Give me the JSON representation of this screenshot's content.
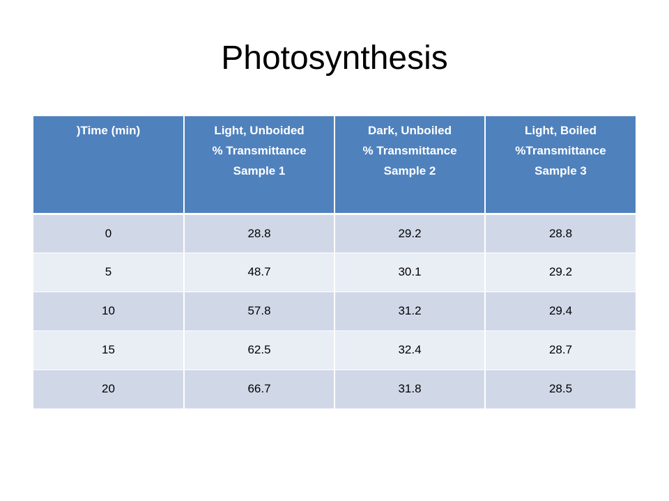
{
  "slide": {
    "title": "Photosynthesis"
  },
  "table": {
    "headers": [
      {
        "lines": [
          ")Time (min)"
        ]
      },
      {
        "lines": [
          "Light, Unboided",
          "% Transmittance",
          "Sample 1"
        ]
      },
      {
        "lines": [
          "Dark, Unboiled",
          "% Transmittance",
          "Sample 2"
        ]
      },
      {
        "lines": [
          "Light, Boiled",
          "%Transmittance",
          "Sample 3"
        ]
      }
    ],
    "rows": [
      [
        "0",
        "28.8",
        "29.2",
        "28.8"
      ],
      [
        "5",
        "48.7",
        "30.1",
        "29.2"
      ],
      [
        "10",
        "57.8",
        "31.2",
        "29.4"
      ],
      [
        "15",
        "62.5",
        "32.4",
        "28.7"
      ],
      [
        "20",
        "66.7",
        "31.8",
        "28.5"
      ]
    ]
  },
  "colors": {
    "header_fill": "#4f81bd",
    "row_band_dark": "#d0d8e8",
    "row_band_light": "#e9edf4",
    "header_text": "#ffffff",
    "body_text": "#000000"
  }
}
